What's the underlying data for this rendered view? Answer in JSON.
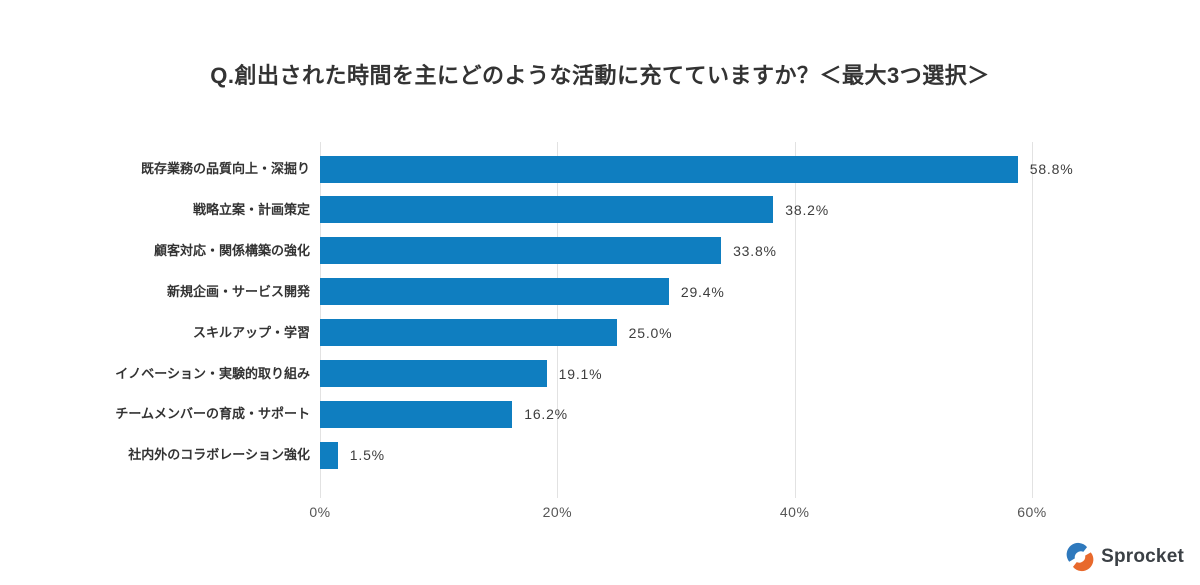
{
  "title": "Q.創出された時間を主にどのような活動に充てていますか？＜最大3つ選択＞",
  "chart_data": {
    "type": "bar",
    "orientation": "horizontal",
    "title": "Q.創出された時間を主にどのような活動に充てていますか？＜最大3つ選択＞",
    "categories": [
      "既存業務の品質向上・深掘り",
      "戦略立案・計画策定",
      "顧客対応・関係構築の強化",
      "新規企画・サービス開発",
      "スキルアップ・学習",
      "イノベーション・実験的取り組み",
      "チームメンバーの育成・サポート",
      "社内外のコラボレーション強化"
    ],
    "values": [
      58.8,
      38.2,
      33.8,
      29.4,
      25.0,
      19.1,
      16.2,
      1.5
    ],
    "value_labels": [
      "58.8%",
      "38.2%",
      "33.8%",
      "29.4%",
      "25.0%",
      "19.1%",
      "16.2%",
      "1.5%"
    ],
    "xlabel": "",
    "ylabel": "",
    "xlim": [
      0,
      60
    ],
    "x_tick_values": [
      0,
      20,
      40,
      60
    ],
    "x_ticks": [
      "0%",
      "20%",
      "40%",
      "60%"
    ],
    "grid": true,
    "legend": false,
    "bar_color": "#0f7ec0",
    "gridline_color": "#e2e2e2"
  },
  "logo": {
    "text": "Sprocket",
    "icon": "sprocket-swirl-icon",
    "blue": "#2e79bd",
    "orange": "#e8692c",
    "text_color": "#3b4045"
  }
}
